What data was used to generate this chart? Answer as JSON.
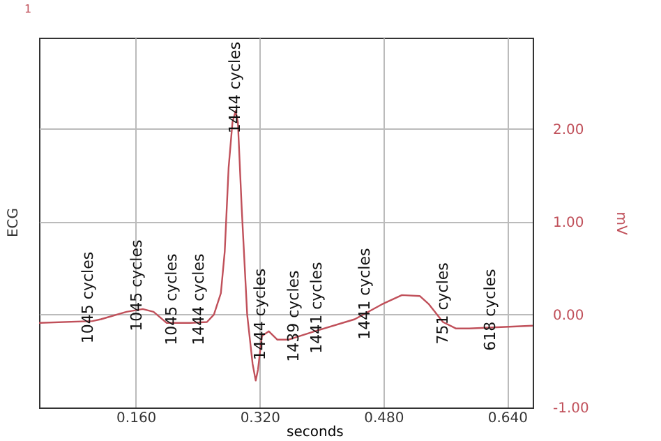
{
  "chart_data": {
    "type": "line",
    "title": "ECG",
    "xlabel": "seconds",
    "ylabel": "mV",
    "x": [
      0.035,
      0.104,
      0.115,
      0.148,
      0.169,
      0.183,
      0.2,
      0.231,
      0.252,
      0.261,
      0.27,
      0.275,
      0.28,
      0.285,
      0.289,
      0.292,
      0.297,
      0.304,
      0.311,
      0.315,
      0.318,
      0.323,
      0.332,
      0.343,
      0.357,
      0.391,
      0.443,
      0.478,
      0.504,
      0.527,
      0.539,
      0.557,
      0.574,
      0.591,
      0.673
    ],
    "series": [
      {
        "color": "#c0505a",
        "values": [
          -0.09,
          -0.07,
          -0.05,
          0.03,
          0.06,
          0.03,
          -0.09,
          -0.09,
          -0.08,
          0,
          0.23,
          0.68,
          1.58,
          2.07,
          2.19,
          2.07,
          1.13,
          0,
          -0.53,
          -0.71,
          -0.59,
          -0.23,
          -0.18,
          -0.27,
          -0.27,
          -0.18,
          -0.05,
          0.11,
          0.21,
          0.2,
          0.11,
          -0.08,
          -0.15,
          -0.15,
          -0.12
        ]
      }
    ],
    "xlim": [
      0.035,
      0.673
    ],
    "xticks": [
      {
        "value": 0.16,
        "label": "0.160"
      },
      {
        "value": 0.32,
        "label": "0.320"
      },
      {
        "value": 0.48,
        "label": "0.480"
      },
      {
        "value": 0.64,
        "label": "0.640"
      }
    ],
    "ylim": [
      -1.0,
      2.98
    ],
    "yticks": [
      {
        "value": -1,
        "label": "-1.00"
      },
      {
        "value": 0,
        "label": "0.00"
      },
      {
        "value": 1,
        "label": "1.00"
      },
      {
        "value": 2,
        "label": "2.00"
      }
    ],
    "grid": true,
    "marker": "none",
    "line_style": "solid",
    "annotations": [
      "1",
      {
        "text": "1045 cycles",
        "x": 0.099,
        "y": -0.07
      },
      {
        "text": "1045 cycles",
        "x": 0.162,
        "y": 0.06
      },
      {
        "text": "1045 cycles",
        "x": 0.207,
        "y": -0.09
      },
      {
        "text": "1444 cycles",
        "x": 0.242,
        "y": -0.09
      },
      {
        "text": "1444 cycles",
        "x": 0.289,
        "y": 2.19
      },
      {
        "text": "1444 cycles",
        "x": 0.322,
        "y": -0.25
      },
      {
        "text": "1439 cycles",
        "x": 0.365,
        "y": -0.27
      },
      {
        "text": "1441 cycles",
        "x": 0.395,
        "y": -0.18
      },
      {
        "text": "1441 cycles",
        "x": 0.457,
        "y": -0.03
      },
      {
        "text": "751 cycles",
        "x": 0.558,
        "y": -0.08
      },
      {
        "text": "618 cycles",
        "x": 0.619,
        "y": -0.15
      }
    ]
  }
}
